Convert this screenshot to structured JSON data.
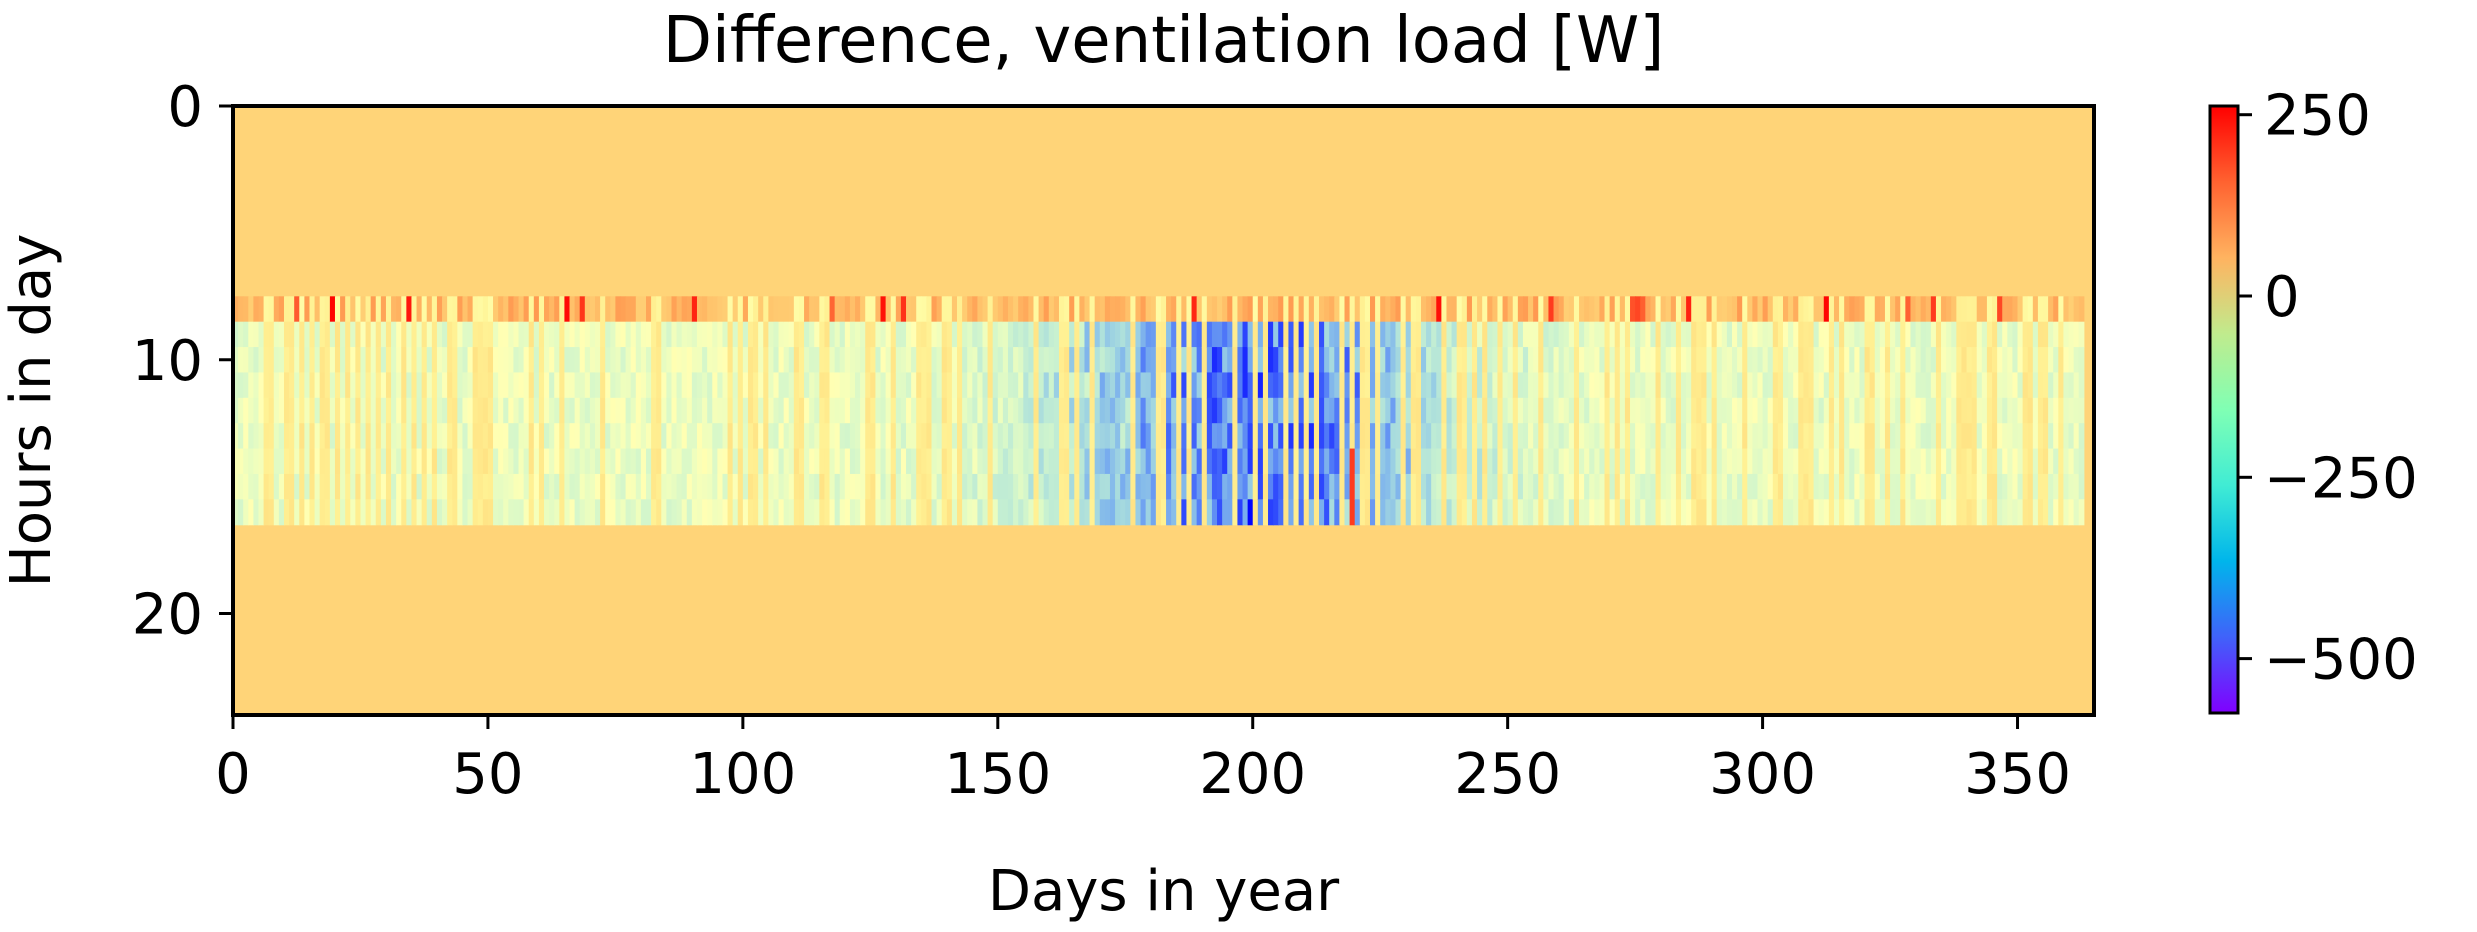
{
  "chart_data": {
    "type": "heatmap",
    "title": "Difference, ventilation load [W]",
    "xlabel": "Days in year",
    "ylabel": "Hours in day",
    "xlim": [
      0,
      365
    ],
    "ylim": [
      0,
      24
    ],
    "y_inverted": true,
    "x_ticks": [
      0,
      50,
      100,
      150,
      200,
      250,
      300,
      350
    ],
    "x_tick_labels": [
      "0",
      "50",
      "100",
      "150",
      "200",
      "250",
      "300",
      "350"
    ],
    "y_ticks": [
      0,
      10,
      20
    ],
    "y_tick_labels": [
      "0",
      "10",
      "20"
    ],
    "colorbar": {
      "colormap": "rainbow",
      "vmin": -575,
      "vmax": 262,
      "ticks": [
        250,
        0,
        -250,
        -500
      ],
      "tick_labels": [
        "250",
        "0",
        "−250",
        "−500"
      ]
    },
    "rows": [
      {
        "hours": "0-7",
        "value": 0,
        "note": "constant"
      },
      {
        "hours": "8",
        "mean": 0,
        "range": [
          -150,
          262
        ]
      },
      {
        "hours": "9-15",
        "mean": -180,
        "range": [
          -575,
          150
        ]
      },
      {
        "hours": "16-23",
        "value": 0,
        "note": "constant"
      }
    ],
    "grid": false
  }
}
